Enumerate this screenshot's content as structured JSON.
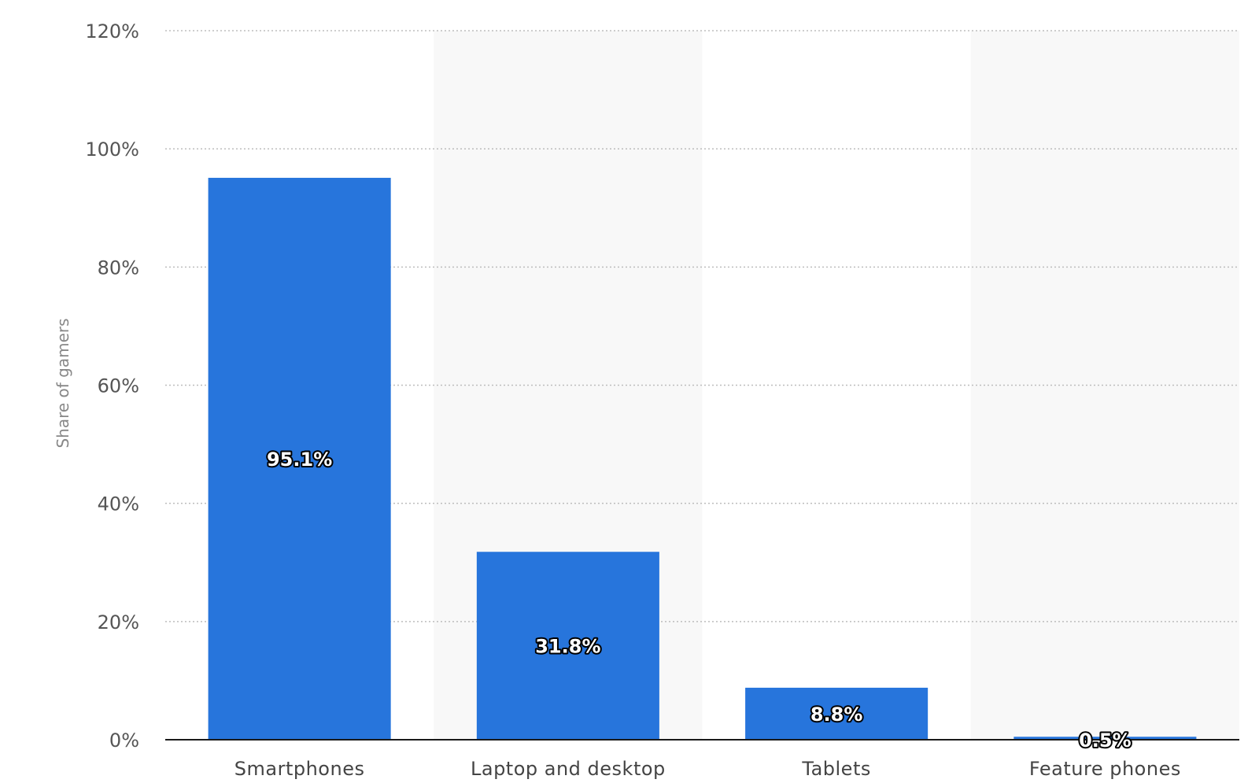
{
  "chart_data": {
    "type": "bar",
    "categories": [
      "Smartphones",
      "Laptop and desktop",
      "Tablets",
      "Feature phones"
    ],
    "values": [
      95.1,
      31.8,
      8.8,
      0.5
    ],
    "data_labels": [
      "95.1%",
      "31.8%",
      "8.8%",
      "0.5%"
    ],
    "ylabel": "Share of gamers",
    "xlabel": "",
    "title": "",
    "ylim": [
      0,
      120
    ],
    "yticks": [
      0,
      20,
      40,
      60,
      80,
      100,
      120
    ],
    "ytick_labels": [
      "0%",
      "20%",
      "40%",
      "60%",
      "80%",
      "100%",
      "120%"
    ],
    "grid": true,
    "bar_color": "#2775dc",
    "band_color": "#f8f8f8"
  }
}
